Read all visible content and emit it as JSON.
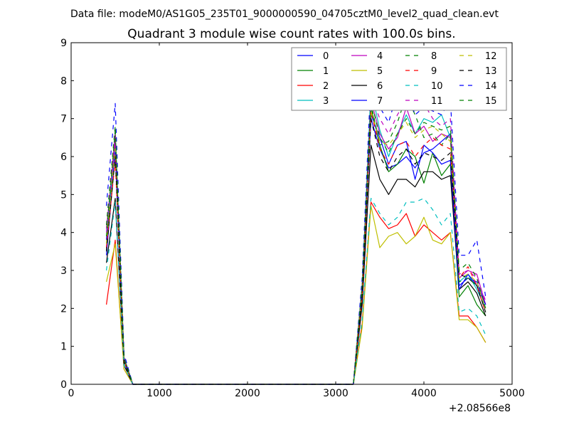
{
  "header": {
    "data_file": "Data file: modeM0/AS1G05_235T01_9000000590_04705cztM0_level2_quad_clean.evt"
  },
  "chart_data": {
    "type": "line",
    "title": "Quadrant 3 module wise count rates with 100.0s bins.",
    "xlabel": "",
    "ylabel": "",
    "x_offset_label": "+2.08566e8",
    "xlim": [
      0,
      5000
    ],
    "ylim": [
      0,
      9
    ],
    "xticks": [
      0,
      1000,
      2000,
      3000,
      4000,
      5000
    ],
    "yticks": [
      0,
      1,
      2,
      3,
      4,
      5,
      6,
      7,
      8,
      9
    ],
    "grid": false,
    "legend_position": "top-right",
    "legend_columns": 4,
    "x": [
      400,
      500,
      600,
      700,
      800,
      900,
      1000,
      1100,
      1200,
      1300,
      1400,
      1500,
      1600,
      1700,
      1800,
      1900,
      2000,
      2100,
      2200,
      2300,
      2400,
      2500,
      2600,
      2700,
      2800,
      2900,
      3000,
      3100,
      3200,
      3300,
      3400,
      3500,
      3600,
      3700,
      3800,
      3900,
      4000,
      4100,
      4200,
      4300,
      4400,
      4500,
      4600,
      4700
    ],
    "series": [
      {
        "name": "0",
        "color": "#0000ff",
        "dash": false,
        "values": [
          3.8,
          6.5,
          0.6,
          0,
          0,
          0,
          0,
          0,
          0,
          0,
          0,
          0,
          0,
          0,
          0,
          0,
          0,
          0,
          0,
          0,
          0,
          0,
          0,
          0,
          0,
          0,
          0,
          0,
          0,
          2.5,
          7.0,
          6.2,
          5.7,
          5.8,
          6.0,
          5.7,
          6.1,
          6.2,
          6.4,
          6.6,
          2.6,
          2.8,
          2.7,
          2.1
        ]
      },
      {
        "name": "1",
        "color": "#008000",
        "dash": false,
        "values": [
          3.5,
          6.6,
          0.6,
          0,
          0,
          0,
          0,
          0,
          0,
          0,
          0,
          0,
          0,
          0,
          0,
          0,
          0,
          0,
          0,
          0,
          0,
          0,
          0,
          0,
          0,
          0,
          0,
          0,
          0,
          2.3,
          7.3,
          6.3,
          5.6,
          5.8,
          6.2,
          6.0,
          5.3,
          6.1,
          5.5,
          5.8,
          2.3,
          2.6,
          2.1,
          1.8
        ]
      },
      {
        "name": "2",
        "color": "#ff0000",
        "dash": false,
        "values": [
          2.1,
          3.8,
          0.4,
          0,
          0,
          0,
          0,
          0,
          0,
          0,
          0,
          0,
          0,
          0,
          0,
          0,
          0,
          0,
          0,
          0,
          0,
          0,
          0,
          0,
          0,
          0,
          0,
          0,
          0,
          1.6,
          4.8,
          4.4,
          4.1,
          4.2,
          4.5,
          3.9,
          4.2,
          4.0,
          3.8,
          4.0,
          1.8,
          1.8,
          1.5,
          1.1
        ]
      },
      {
        "name": "3",
        "color": "#00bfbf",
        "dash": false,
        "values": [
          3.9,
          6.3,
          0.7,
          0,
          0,
          0,
          0,
          0,
          0,
          0,
          0,
          0,
          0,
          0,
          0,
          0,
          0,
          0,
          0,
          0,
          0,
          0,
          0,
          0,
          0,
          0,
          0,
          0,
          0,
          2.6,
          7.8,
          6.7,
          6.0,
          6.6,
          7.1,
          6.6,
          7.0,
          6.9,
          7.1,
          6.5,
          2.7,
          2.9,
          2.5,
          2.0
        ]
      },
      {
        "name": "4",
        "color": "#bf00bf",
        "dash": false,
        "values": [
          4.1,
          6.4,
          0.7,
          0,
          0,
          0,
          0,
          0,
          0,
          0,
          0,
          0,
          0,
          0,
          0,
          0,
          0,
          0,
          0,
          0,
          0,
          0,
          0,
          0,
          0,
          0,
          0,
          0,
          0,
          2.6,
          7.5,
          6.6,
          6.2,
          6.5,
          7.3,
          6.6,
          6.8,
          6.4,
          6.6,
          6.5,
          2.8,
          3.0,
          2.9,
          2.1
        ]
      },
      {
        "name": "5",
        "color": "#bfbf00",
        "dash": false,
        "values": [
          2.7,
          3.7,
          0.4,
          0,
          0,
          0,
          0,
          0,
          0,
          0,
          0,
          0,
          0,
          0,
          0,
          0,
          0,
          0,
          0,
          0,
          0,
          0,
          0,
          0,
          0,
          0,
          0,
          0,
          0,
          1.5,
          4.7,
          3.6,
          3.9,
          4.0,
          3.7,
          3.9,
          4.4,
          3.8,
          3.7,
          4.0,
          1.7,
          1.7,
          1.5,
          1.1
        ]
      },
      {
        "name": "6",
        "color": "#000000",
        "dash": false,
        "values": [
          3.2,
          4.9,
          0.5,
          0,
          0,
          0,
          0,
          0,
          0,
          0,
          0,
          0,
          0,
          0,
          0,
          0,
          0,
          0,
          0,
          0,
          0,
          0,
          0,
          0,
          0,
          0,
          0,
          0,
          0,
          2.1,
          6.3,
          5.4,
          5.0,
          5.4,
          5.4,
          5.2,
          5.6,
          5.6,
          5.4,
          5.5,
          2.5,
          2.7,
          2.4,
          1.8
        ]
      },
      {
        "name": "7",
        "color": "#0000ff",
        "dash": false,
        "values": [
          3.4,
          6.1,
          0.6,
          0,
          0,
          0,
          0,
          0,
          0,
          0,
          0,
          0,
          0,
          0,
          0,
          0,
          0,
          0,
          0,
          0,
          0,
          0,
          0,
          0,
          0,
          0,
          0,
          0,
          0,
          2.4,
          7.1,
          6.5,
          5.8,
          6.3,
          6.4,
          5.4,
          6.3,
          6.1,
          5.8,
          5.9,
          2.5,
          2.9,
          2.6,
          2.1
        ]
      },
      {
        "name": "8",
        "color": "#008000",
        "dash": true,
        "values": [
          3.9,
          6.7,
          0.7,
          0,
          0,
          0,
          0,
          0,
          0,
          0,
          0,
          0,
          0,
          0,
          0,
          0,
          0,
          0,
          0,
          0,
          0,
          0,
          0,
          0,
          0,
          0,
          0,
          0,
          0,
          2.6,
          7.4,
          6.3,
          6.4,
          6.9,
          7.6,
          7.1,
          6.5,
          6.6,
          6.3,
          6.6,
          2.7,
          2.8,
          2.6,
          1.9
        ]
      },
      {
        "name": "9",
        "color": "#ff0000",
        "dash": true,
        "values": [
          3.6,
          5.9,
          0.6,
          0,
          0,
          0,
          0,
          0,
          0,
          0,
          0,
          0,
          0,
          0,
          0,
          0,
          0,
          0,
          0,
          0,
          0,
          0,
          0,
          0,
          0,
          0,
          0,
          0,
          0,
          2.3,
          7.2,
          6.2,
          5.8,
          6.3,
          6.4,
          6.0,
          6.3,
          6.5,
          6.3,
          6.2,
          2.8,
          3.1,
          2.6,
          1.9
        ]
      },
      {
        "name": "10",
        "color": "#00bfbf",
        "dash": true,
        "values": [
          3.0,
          4.8,
          0.5,
          0,
          0,
          0,
          0,
          0,
          0,
          0,
          0,
          0,
          0,
          0,
          0,
          0,
          0,
          0,
          0,
          0,
          0,
          0,
          0,
          0,
          0,
          0,
          0,
          0,
          0,
          1.7,
          4.9,
          4.5,
          4.2,
          4.4,
          4.8,
          4.8,
          4.9,
          4.6,
          4.2,
          4.5,
          1.9,
          2.0,
          1.8,
          1.3
        ]
      },
      {
        "name": "11",
        "color": "#bf00bf",
        "dash": true,
        "values": [
          4.0,
          6.6,
          0.7,
          0,
          0,
          0,
          0,
          0,
          0,
          0,
          0,
          0,
          0,
          0,
          0,
          0,
          0,
          0,
          0,
          0,
          0,
          0,
          0,
          0,
          0,
          0,
          0,
          0,
          0,
          2.7,
          7.6,
          7.0,
          6.6,
          7.1,
          7.5,
          7.2,
          7.4,
          7.0,
          6.8,
          7.0,
          2.9,
          3.0,
          2.8,
          2.2
        ]
      },
      {
        "name": "12",
        "color": "#bfbf00",
        "dash": true,
        "values": [
          3.7,
          6.2,
          0.6,
          0,
          0,
          0,
          0,
          0,
          0,
          0,
          0,
          0,
          0,
          0,
          0,
          0,
          0,
          0,
          0,
          0,
          0,
          0,
          0,
          0,
          0,
          0,
          0,
          0,
          0,
          2.4,
          7.2,
          6.4,
          6.3,
          6.6,
          6.9,
          6.5,
          6.7,
          6.8,
          6.6,
          6.4,
          2.8,
          2.9,
          2.7,
          2.0
        ]
      },
      {
        "name": "13",
        "color": "#000000",
        "dash": true,
        "values": [
          3.5,
          6.0,
          0.6,
          0,
          0,
          0,
          0,
          0,
          0,
          0,
          0,
          0,
          0,
          0,
          0,
          0,
          0,
          0,
          0,
          0,
          0,
          0,
          0,
          0,
          0,
          0,
          0,
          0,
          0,
          2.3,
          7.0,
          6.0,
          5.6,
          6.0,
          6.2,
          5.8,
          6.1,
          6.0,
          5.9,
          6.1,
          2.9,
          2.8,
          2.6,
          1.9
        ]
      },
      {
        "name": "14",
        "color": "#0000ff",
        "dash": true,
        "values": [
          4.7,
          7.4,
          0.8,
          0,
          0,
          0,
          0,
          0,
          0,
          0,
          0,
          0,
          0,
          0,
          0,
          0,
          0,
          0,
          0,
          0,
          0,
          0,
          0,
          0,
          0,
          0,
          0,
          0,
          0,
          2.8,
          8.1,
          7.3,
          6.9,
          7.7,
          7.8,
          7.1,
          7.3,
          7.2,
          7.1,
          7.5,
          3.4,
          3.4,
          3.8,
          2.3
        ]
      },
      {
        "name": "15",
        "color": "#008000",
        "dash": true,
        "values": [
          4.2,
          6.8,
          0.7,
          0,
          0,
          0,
          0,
          0,
          0,
          0,
          0,
          0,
          0,
          0,
          0,
          0,
          0,
          0,
          0,
          0,
          0,
          0,
          0,
          0,
          0,
          0,
          0,
          0,
          0,
          2.6,
          7.5,
          6.5,
          6.1,
          6.6,
          7.0,
          6.6,
          6.9,
          6.8,
          6.7,
          6.8,
          3.0,
          3.2,
          2.8,
          2.0
        ]
      }
    ]
  }
}
